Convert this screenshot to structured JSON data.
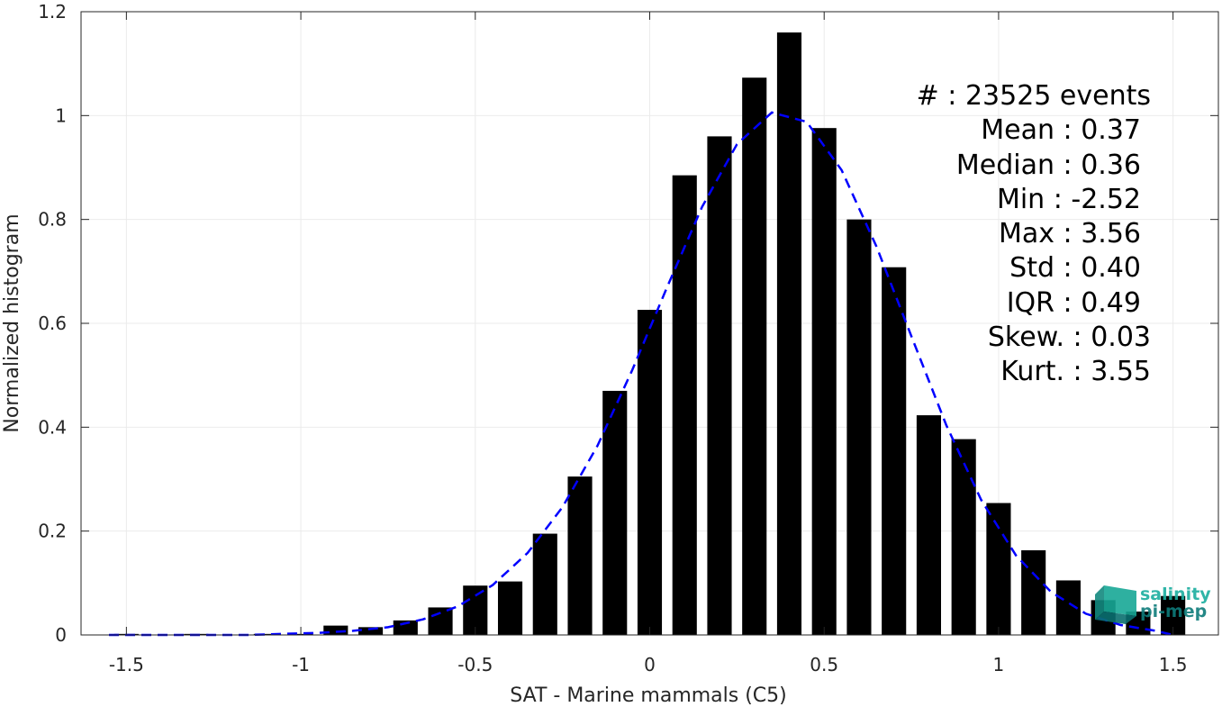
{
  "chart_data": {
    "type": "bar",
    "xlabel": "SAT - Marine mammals (C5)",
    "ylabel": "Normalized histogram",
    "xlim": [
      -1.63,
      1.63
    ],
    "ylim": [
      0,
      1.2
    ],
    "xticks": [
      -1.5,
      -1,
      -0.5,
      0,
      0.5,
      1,
      1.5
    ],
    "xtick_labels": [
      "-1.5",
      "-1",
      "-0.5",
      "0",
      "0.5",
      "1",
      "1.5"
    ],
    "yticks": [
      0,
      0.2,
      0.4,
      0.6,
      0.8,
      1,
      1.2
    ],
    "ytick_labels": [
      "0",
      "0.2",
      "0.4",
      "0.6",
      "0.8",
      "1",
      "1.2"
    ],
    "grid": true,
    "bar_color": "#000000",
    "bin_width": 0.1,
    "bins": [
      {
        "x": -1.5,
        "y": 0.002
      },
      {
        "x": -1.4,
        "y": 0.0
      },
      {
        "x": -1.3,
        "y": 0.002
      },
      {
        "x": -1.2,
        "y": 0.0
      },
      {
        "x": -1.1,
        "y": 0.002
      },
      {
        "x": -1.0,
        "y": 0.002
      },
      {
        "x": -0.9,
        "y": 0.018
      },
      {
        "x": -0.8,
        "y": 0.015
      },
      {
        "x": -0.7,
        "y": 0.028
      },
      {
        "x": -0.6,
        "y": 0.053
      },
      {
        "x": -0.5,
        "y": 0.095
      },
      {
        "x": -0.4,
        "y": 0.103
      },
      {
        "x": -0.3,
        "y": 0.195
      },
      {
        "x": -0.2,
        "y": 0.305
      },
      {
        "x": -0.1,
        "y": 0.47
      },
      {
        "x": 0.0,
        "y": 0.626
      },
      {
        "x": 0.1,
        "y": 0.885
      },
      {
        "x": 0.2,
        "y": 0.96
      },
      {
        "x": 0.3,
        "y": 1.073
      },
      {
        "x": 0.4,
        "y": 1.16
      },
      {
        "x": 0.5,
        "y": 0.976
      },
      {
        "x": 0.6,
        "y": 0.8
      },
      {
        "x": 0.7,
        "y": 0.708
      },
      {
        "x": 0.8,
        "y": 0.423
      },
      {
        "x": 0.9,
        "y": 0.377
      },
      {
        "x": 1.0,
        "y": 0.254
      },
      {
        "x": 1.1,
        "y": 0.163
      },
      {
        "x": 1.2,
        "y": 0.105
      },
      {
        "x": 1.3,
        "y": 0.067
      },
      {
        "x": 1.4,
        "y": 0.045
      },
      {
        "x": 1.5,
        "y": 0.075
      }
    ],
    "fit_curve": {
      "style": "dashed",
      "color": "#0000ff",
      "points": [
        [
          -1.55,
          0.0
        ],
        [
          -1.45,
          0.0
        ],
        [
          -1.35,
          0.0
        ],
        [
          -1.25,
          0.0
        ],
        [
          -1.15,
          0.0
        ],
        [
          -1.05,
          0.002
        ],
        [
          -0.95,
          0.004
        ],
        [
          -0.85,
          0.008
        ],
        [
          -0.75,
          0.015
        ],
        [
          -0.65,
          0.03
        ],
        [
          -0.55,
          0.055
        ],
        [
          -0.45,
          0.096
        ],
        [
          -0.35,
          0.158
        ],
        [
          -0.25,
          0.246
        ],
        [
          -0.15,
          0.364
        ],
        [
          -0.05,
          0.51
        ],
        [
          0.05,
          0.67
        ],
        [
          0.15,
          0.824
        ],
        [
          0.25,
          0.945
        ],
        [
          0.35,
          1.006
        ],
        [
          0.45,
          0.988
        ],
        [
          0.55,
          0.895
        ],
        [
          0.65,
          0.748
        ],
        [
          0.75,
          0.575
        ],
        [
          0.85,
          0.404
        ],
        [
          0.95,
          0.26
        ],
        [
          1.05,
          0.153
        ],
        [
          1.15,
          0.083
        ],
        [
          1.25,
          0.041
        ],
        [
          1.35,
          0.019
        ],
        [
          1.45,
          0.008
        ],
        [
          1.5,
          0.0
        ]
      ]
    },
    "stats": [
      "#  : 23525 events",
      "Mean : 0.37",
      "Median : 0.36",
      "Min : -2.52",
      "Max : 3.56",
      "Std : 0.40",
      "IQR : 0.49",
      "Skew. : 0.03",
      "Kurt. : 3.55"
    ]
  },
  "logo": {
    "line1": "salinity",
    "line2": "pi-mep",
    "color1": "#1aae9f",
    "color2": "#0e7c7b"
  }
}
